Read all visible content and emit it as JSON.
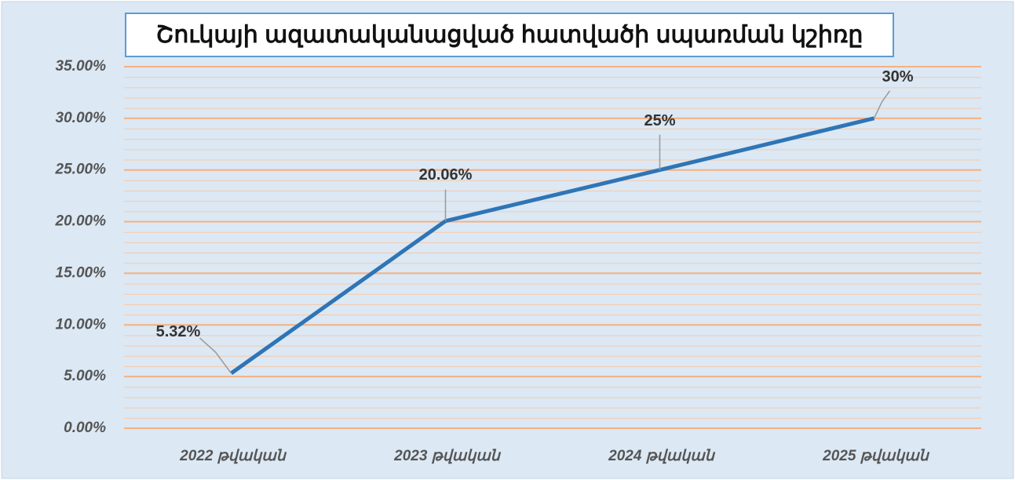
{
  "chart_data": {
    "type": "line",
    "title": "Շուկայի ազատականացված հատվածի սպառման կշիռը",
    "categories": [
      "2022 թվական",
      "2023 թվական",
      "2024 թվական",
      "2025 թվական"
    ],
    "series": [
      {
        "name": "Շուկայի ազատականացված հատվածի սպառման կշիռը",
        "color": "#2e75b6",
        "values": [
          5.32,
          20.06,
          25,
          30
        ],
        "value_labels": [
          "5.32%",
          "20.06%",
          "25%",
          "30%"
        ]
      }
    ],
    "ylim": [
      0,
      35
    ],
    "yticks": [
      {
        "value": 0,
        "label": "0.00%"
      },
      {
        "value": 5,
        "label": "5.00%"
      },
      {
        "value": 10,
        "label": "10.00%"
      },
      {
        "value": 15,
        "label": "15.00%"
      },
      {
        "value": 20,
        "label": "20.00%"
      },
      {
        "value": 25,
        "label": "25.00%"
      },
      {
        "value": 30,
        "label": "30.00%"
      },
      {
        "value": 35,
        "label": "35.00%"
      }
    ],
    "grid": true
  }
}
